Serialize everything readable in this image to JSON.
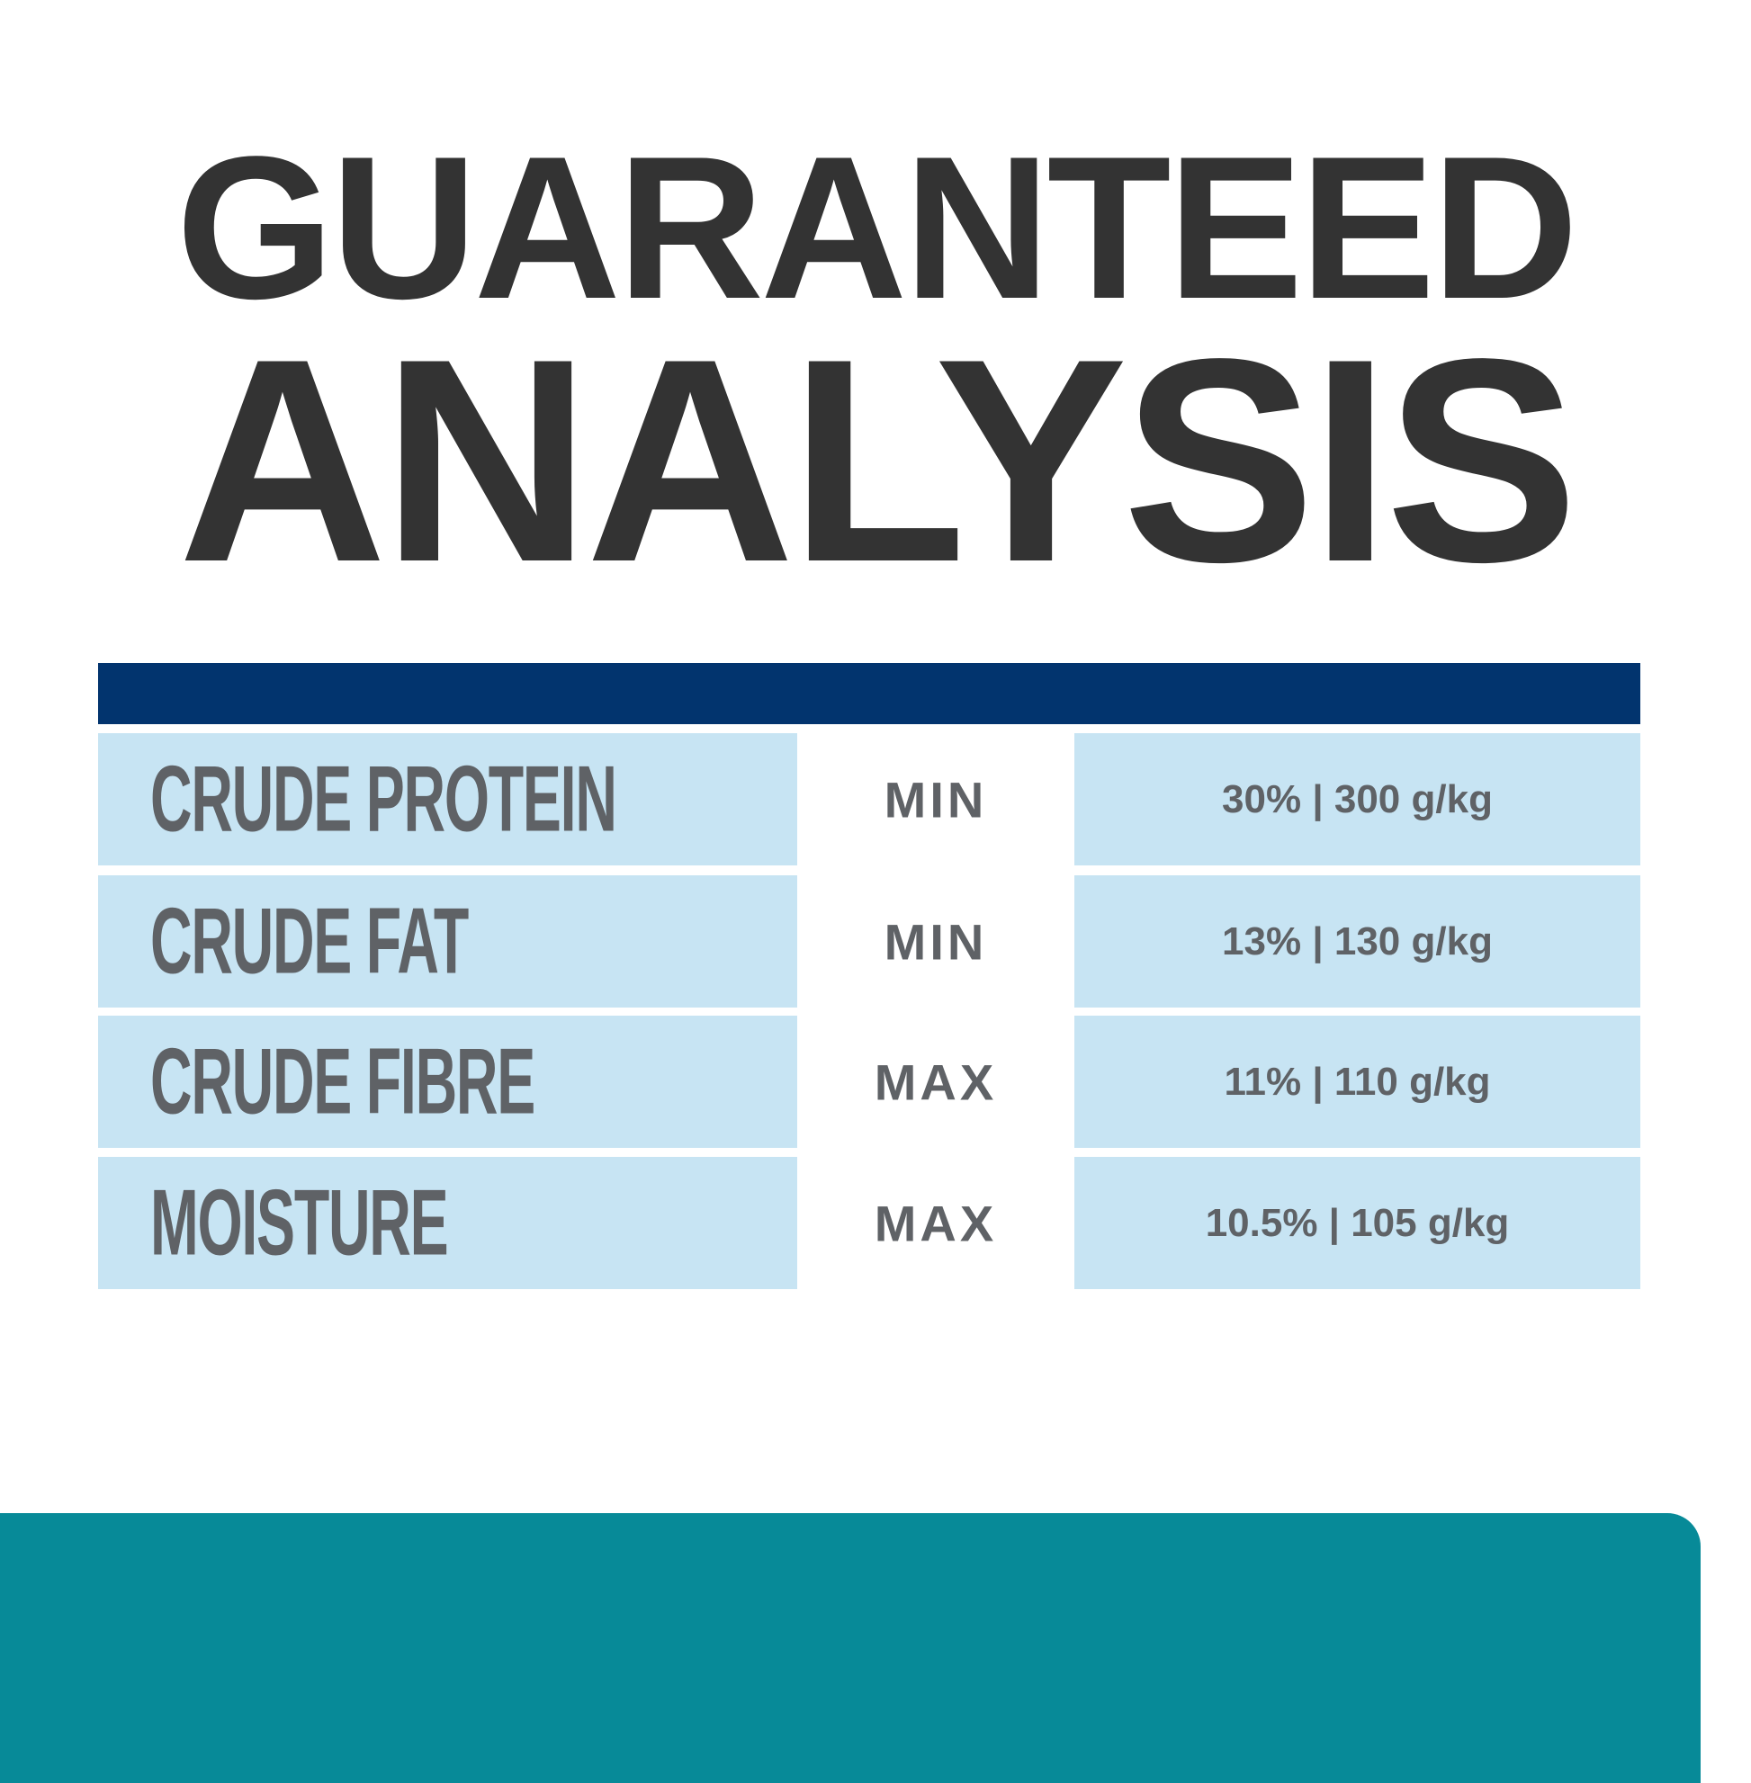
{
  "title": {
    "line1": "GUARANTEED",
    "line2": "ANALYSIS"
  },
  "colors": {
    "text": "#333333",
    "header_bar": "#02346e",
    "cell": "#c7e4f3",
    "footer": "#078a98"
  },
  "rows": [
    {
      "nutrient": "CRUDE PROTEIN",
      "qualifier": "MIN",
      "value": "30% | 300 g/kg"
    },
    {
      "nutrient": "CRUDE FAT",
      "qualifier": "MIN",
      "value": "13% | 130 g/kg"
    },
    {
      "nutrient": "CRUDE FIBRE",
      "qualifier": "MAX",
      "value": "11% | 110 g/kg"
    },
    {
      "nutrient": "MOISTURE",
      "qualifier": "MAX",
      "value": "10.5% | 105 g/kg"
    }
  ]
}
